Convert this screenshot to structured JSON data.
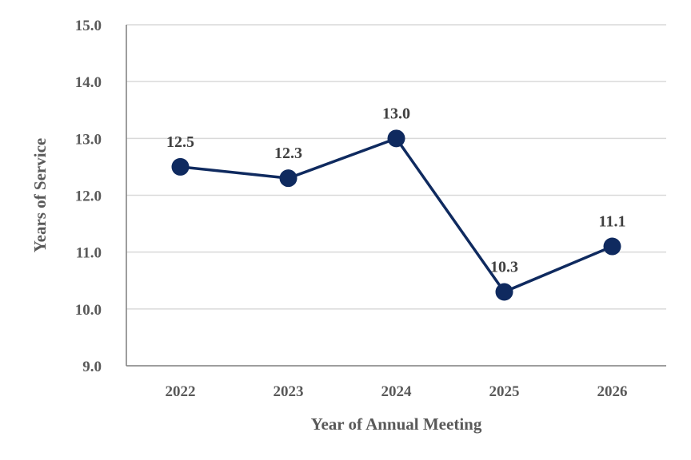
{
  "chart_data": {
    "type": "line",
    "categories": [
      "2022",
      "2023",
      "2024",
      "2025",
      "2026"
    ],
    "series": [
      {
        "values": [
          12.5,
          12.3,
          13.0,
          10.3,
          11.1
        ],
        "data_labels": [
          "12.5",
          "12.3",
          "13.0",
          "10.3",
          "11.1"
        ]
      }
    ],
    "y_ticks": [
      "9.0",
      "10.0",
      "11.0",
      "12.0",
      "13.0",
      "14.0",
      "15.0"
    ],
    "ylim": [
      9,
      15
    ],
    "xlabel": "Year of Annual Meeting",
    "ylabel": "Years of Service",
    "grid": true,
    "legend": "none",
    "line_color": "#0f2a5f",
    "marker_color": "#0f2a5f"
  }
}
